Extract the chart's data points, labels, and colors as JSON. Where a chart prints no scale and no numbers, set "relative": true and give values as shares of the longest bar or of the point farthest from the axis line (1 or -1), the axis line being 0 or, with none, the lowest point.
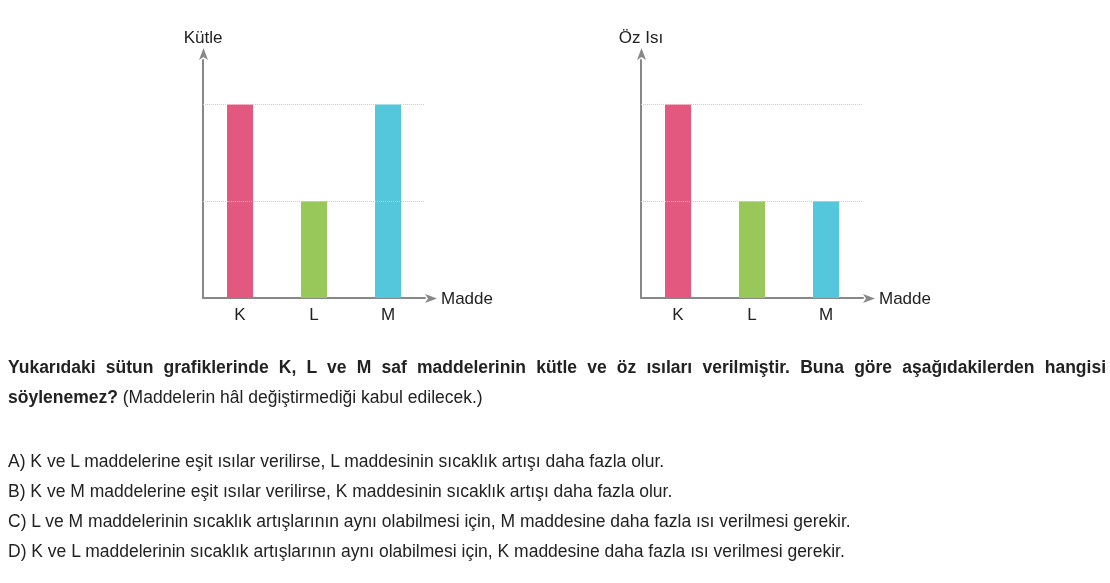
{
  "chart_data": [
    {
      "type": "bar",
      "ylabel": "Kütle",
      "xlabel": "Madde",
      "categories": [
        "K",
        "L",
        "M"
      ],
      "values": [
        1,
        0.5,
        1
      ],
      "colors": [
        "#e3587f",
        "#97c859",
        "#55c7dc"
      ],
      "relative": true,
      "tick_labels": "x",
      "ref_lines": [
        {
          "axis": "y",
          "value": 0.5,
          "color": "#cccccc",
          "line_style": "dotted"
        },
        {
          "axis": "y",
          "value": 1,
          "color": "#cccccc",
          "line_style": "dotted"
        }
      ]
    },
    {
      "type": "bar",
      "ylabel": "Öz Isı",
      "xlabel": "Madde",
      "categories": [
        "K",
        "L",
        "M"
      ],
      "values": [
        1,
        0.5,
        0.5
      ],
      "colors": [
        "#e3587f",
        "#97c859",
        "#55c7dc"
      ],
      "relative": true,
      "tick_labels": "x",
      "ref_lines": [
        {
          "axis": "y",
          "value": 0.5,
          "color": "#cccccc",
          "line_style": "dotted"
        },
        {
          "axis": "y",
          "value": 1,
          "color": "#cccccc",
          "line_style": "dotted"
        }
      ]
    },
    {
      "type": "other",
      "annotations": [
        "Yukarıdaki sütun grafiklerinde K, L ve M saf maddelerinin kütle ve öz ısıları verilmiştir. Buna göre aşağıdakilerden hangisi söylenemez?",
        "(Maddelerin hâl değiştirmediği kabul edilecek.)",
        "A) K ve L maddelerine eşit ısılar verilirse, L maddesinin sıcaklık artışı daha fazla olur.",
        "B) K ve M maddelerine eşit ısılar verilirse, K maddesinin sıcaklık artışı daha fazla olur.",
        "C) L ve M maddelerinin sıcaklık artışlarının aynı olabilmesi için, M maddesine daha fazla ısı verilmesi gerekir.",
        "D) K ve L maddelerinin sıcaklık artışlarının aynı olabilmesi için, K maddesine daha fazla ısı verilmesi gerekir."
      ]
    }
  ]
}
